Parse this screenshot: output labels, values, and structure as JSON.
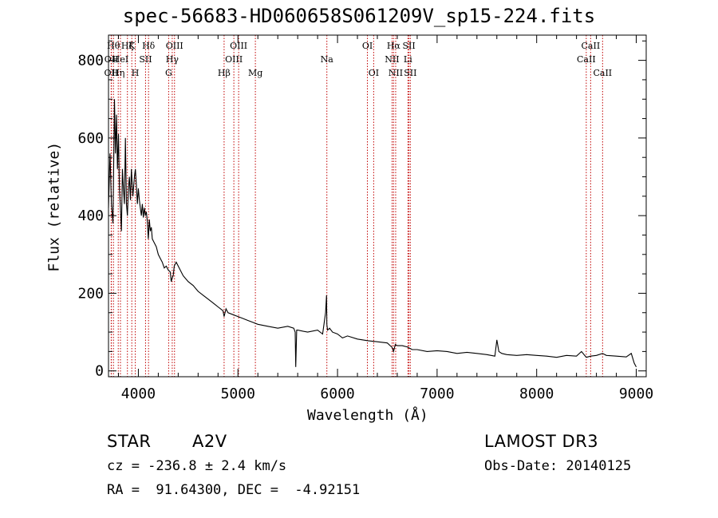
{
  "chart_data": {
    "type": "line",
    "title": "spec-56683-HD060658S061209V_sp15-224.fits",
    "xlabel": "Wavelength (Å)",
    "ylabel": "Flux (relative)",
    "xlim": [
      3700,
      9100
    ],
    "ylim": [
      -15,
      865
    ],
    "xticks": [
      4000,
      5000,
      6000,
      7000,
      8000,
      9000
    ],
    "yticks": [
      0,
      200,
      400,
      600,
      800
    ],
    "series": [
      {
        "name": "flux",
        "x": [
          3700,
          3715,
          3730,
          3745,
          3760,
          3770,
          3780,
          3790,
          3800,
          3810,
          3820,
          3830,
          3840,
          3850,
          3860,
          3870,
          3880,
          3890,
          3900,
          3910,
          3920,
          3930,
          3945,
          3960,
          3970,
          3980,
          3990,
          4000,
          4010,
          4020,
          4030,
          4040,
          4050,
          4060,
          4070,
          4080,
          4090,
          4100,
          4110,
          4120,
          4130,
          4140,
          4160,
          4180,
          4200,
          4220,
          4240,
          4260,
          4280,
          4300,
          4320,
          4330,
          4340,
          4350,
          4360,
          4380,
          4400,
          4450,
          4500,
          4550,
          4600,
          4650,
          4700,
          4750,
          4800,
          4850,
          4861,
          4880,
          4900,
          4950,
          5000,
          5050,
          5100,
          5150,
          5200,
          5300,
          5400,
          5500,
          5560,
          5575,
          5580,
          5590,
          5600,
          5700,
          5800,
          5850,
          5880,
          5890,
          5893,
          5900,
          5920,
          5950,
          6000,
          6050,
          6100,
          6200,
          6300,
          6400,
          6500,
          6550,
          6563,
          6580,
          6600,
          6650,
          6700,
          6750,
          6800,
          6900,
          7000,
          7100,
          7200,
          7300,
          7400,
          7500,
          7580,
          7600,
          7620,
          7650,
          7700,
          7800,
          7900,
          8000,
          8100,
          8200,
          8300,
          8400,
          8450,
          8498,
          8542,
          8600,
          8662,
          8700,
          8800,
          8900,
          8950,
          8980,
          9000
        ],
        "y": [
          420,
          560,
          430,
          380,
          700,
          560,
          660,
          520,
          610,
          470,
          420,
          360,
          520,
          470,
          430,
          600,
          430,
          400,
          470,
          500,
          440,
          520,
          450,
          500,
          520,
          480,
          430,
          470,
          440,
          420,
          400,
          430,
          395,
          420,
          400,
          410,
          385,
          340,
          390,
          360,
          370,
          340,
          330,
          320,
          300,
          290,
          280,
          265,
          270,
          260,
          255,
          230,
          240,
          245,
          270,
          280,
          270,
          245,
          230,
          220,
          205,
          195,
          185,
          175,
          165,
          155,
          140,
          160,
          150,
          145,
          140,
          135,
          130,
          125,
          120,
          115,
          110,
          115,
          110,
          100,
          10,
          105,
          105,
          100,
          105,
          95,
          150,
          195,
          120,
          105,
          110,
          100,
          95,
          85,
          90,
          82,
          78,
          75,
          72,
          60,
          50,
          68,
          65,
          65,
          62,
          55,
          55,
          50,
          52,
          50,
          45,
          48,
          45,
          42,
          38,
          80,
          50,
          45,
          42,
          40,
          42,
          40,
          38,
          35,
          40,
          38,
          50,
          35,
          38,
          40,
          45,
          40,
          38,
          36,
          45,
          20,
          10
        ]
      }
    ],
    "lines": [
      {
        "wl": 3727,
        "label": "OII",
        "row": 3
      },
      {
        "wl": 3729,
        "label": "OII",
        "row": 2
      },
      {
        "wl": 3750,
        "label": "Hθ",
        "row": 1
      },
      {
        "wl": 3798,
        "label": "Hη",
        "row": 3
      },
      {
        "wl": 3820,
        "label": "HeI",
        "row": 2
      },
      {
        "wl": 3890,
        "label": "Hζ",
        "row": 1
      },
      {
        "wl": 3934,
        "label": "K",
        "row": 1
      },
      {
        "wl": 3969,
        "label": "H",
        "row": 3
      },
      {
        "wl": 4072,
        "label": "SII",
        "row": 2
      },
      {
        "wl": 4102,
        "label": "Hδ",
        "row": 1
      },
      {
        "wl": 4304,
        "label": "G",
        "row": 3
      },
      {
        "wl": 4340,
        "label": "Hγ",
        "row": 2
      },
      {
        "wl": 4363,
        "label": "OIII",
        "row": 1
      },
      {
        "wl": 4861,
        "label": "Hβ",
        "row": 3
      },
      {
        "wl": 4959,
        "label": "OIII",
        "row": 2
      },
      {
        "wl": 5007,
        "label": "OIII",
        "row": 1
      },
      {
        "wl": 5175,
        "label": "Mg",
        "row": 3
      },
      {
        "wl": 5893,
        "label": "Na",
        "row": 2
      },
      {
        "wl": 6300,
        "label": "OI",
        "row": 1
      },
      {
        "wl": 6363,
        "label": "OI",
        "row": 3
      },
      {
        "wl": 6548,
        "label": "NII",
        "row": 2
      },
      {
        "wl": 6563,
        "label": "Hα",
        "row": 1
      },
      {
        "wl": 6584,
        "label": "NII",
        "row": 3
      },
      {
        "wl": 6707,
        "label": "Li",
        "row": 2
      },
      {
        "wl": 6717,
        "label": "SII",
        "row": 1
      },
      {
        "wl": 6731,
        "label": "SII",
        "row": 3
      },
      {
        "wl": 8498,
        "label": "CaII",
        "row": 2
      },
      {
        "wl": 8542,
        "label": "CaII",
        "row": 1
      },
      {
        "wl": 8662,
        "label": "CaII",
        "row": 3
      }
    ]
  },
  "info": {
    "class_label": "STAR",
    "subclass": "A2V",
    "survey": "LAMOST DR3",
    "cz": "cz = -236.8 ± 2.4 km/s",
    "obs_date": "Obs-Date: 20140125",
    "coords": "RA =  91.64300, DEC =  -4.92151"
  },
  "colors": {
    "axes": "#000000",
    "lines": "#c00000",
    "spectrum": "#000000"
  }
}
